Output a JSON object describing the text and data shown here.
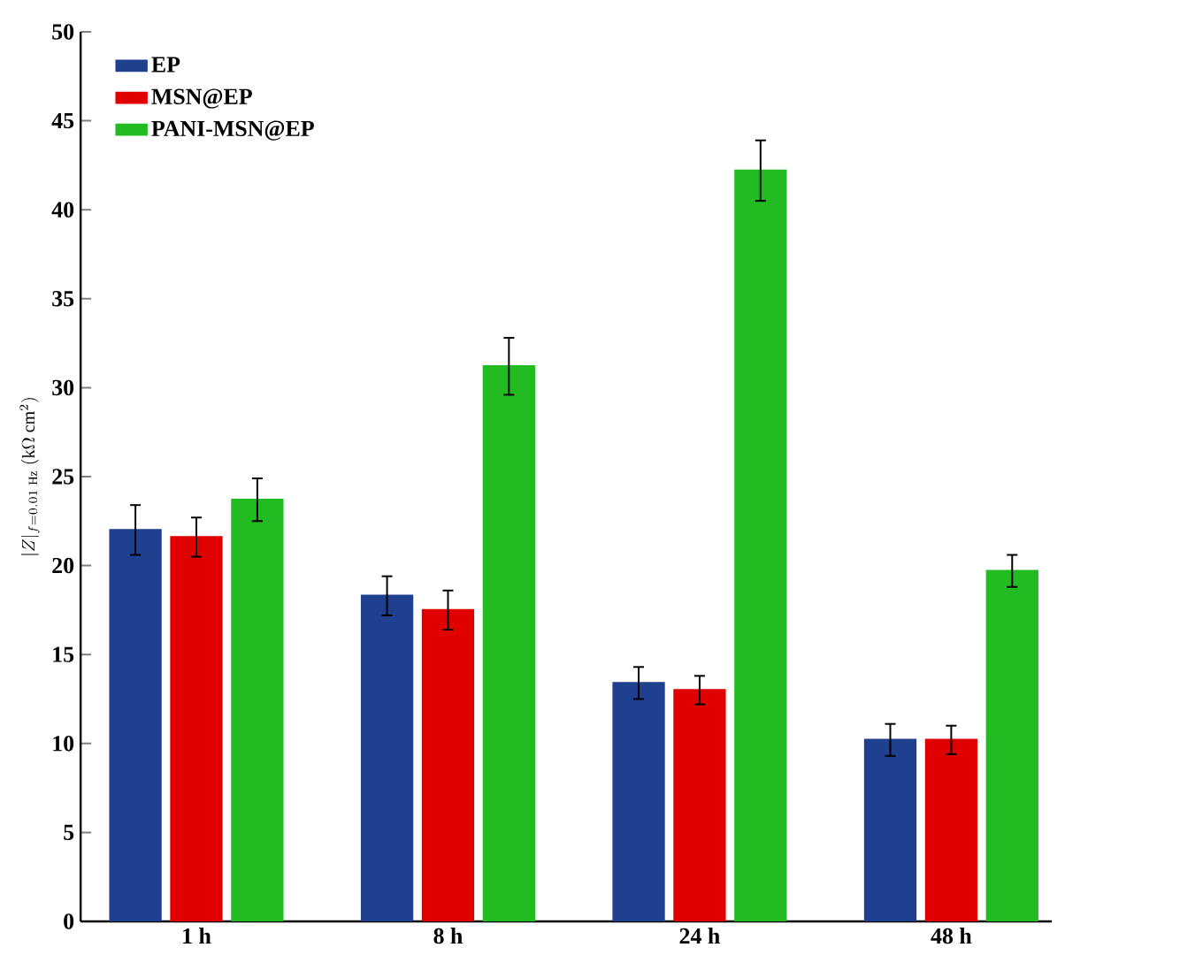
{
  "chart_data": {
    "type": "bar",
    "ylabel": "|Z|_{f=0.01\\ \\mathrm{Hz}}\\ (\\mathrm{k}\\Omega\\ \\mathrm{cm}^{2})",
    "categories": [
      "1 h",
      "8 h",
      "24 h",
      "48 h"
    ],
    "series": [
      {
        "name": "EP",
        "color": "#1f3f8f",
        "values": [
          22.0,
          18.3,
          13.4,
          10.2
        ],
        "errors": [
          1.4,
          1.1,
          0.9,
          0.9
        ]
      },
      {
        "name": "MSN@EP",
        "color": "#e00000",
        "values": [
          21.6,
          17.5,
          13.0,
          10.2
        ],
        "errors": [
          1.1,
          1.1,
          0.8,
          0.8
        ]
      },
      {
        "name": "PANI-MSN@EP",
        "color": "#22bb22",
        "values": [
          23.7,
          31.2,
          42.2,
          19.7
        ],
        "errors": [
          1.2,
          1.6,
          1.7,
          0.9
        ]
      }
    ],
    "ylim": [
      0,
      50
    ],
    "yticks": [
      0,
      5,
      10,
      15,
      20,
      25,
      30,
      35,
      40,
      45,
      50
    ],
    "legend": "top left",
    "grid": false
  }
}
